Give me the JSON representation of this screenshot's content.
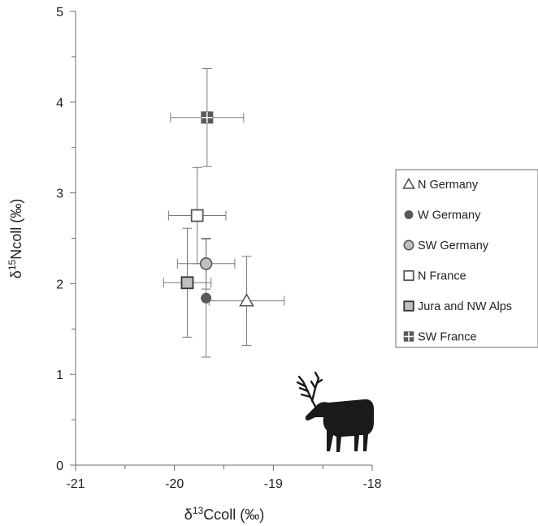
{
  "chart_data": {
    "type": "scatter",
    "title": "",
    "xlabel": {
      "prefix": "δ",
      "sup": "13",
      "suffix": "Ccoll (‰)"
    },
    "ylabel": {
      "prefix": "δ",
      "sup": "15",
      "suffix": "Ncoll (‰)"
    },
    "xlim": [
      -21,
      -18
    ],
    "ylim": [
      0,
      5
    ],
    "x_ticks": [
      -21,
      -20,
      -19,
      -18
    ],
    "x_tick_labels": [
      "-21",
      "-20",
      "-19",
      "-18"
    ],
    "y_ticks": [
      0,
      1,
      2,
      3,
      4,
      5
    ],
    "y_tick_labels": [
      "0",
      "1",
      "2",
      "3",
      "4",
      "5"
    ],
    "grid": false,
    "legend_position": "right",
    "series": [
      {
        "name": "N Germany",
        "marker": "triangle",
        "x": -19.27,
        "y": 1.81,
        "x_err": 0.38,
        "y_err": 0.49
      },
      {
        "name": "W Germany",
        "marker": "circle-small",
        "x": -19.68,
        "y": 1.84,
        "x_err": 0.0,
        "y_err": 0.65
      },
      {
        "name": "SW Germany",
        "marker": "circle",
        "x": -19.68,
        "y": 2.22,
        "x_err": 0.29,
        "y_err": 0.28
      },
      {
        "name": "N France",
        "marker": "square-open",
        "x": -19.77,
        "y": 2.75,
        "x_err": 0.29,
        "y_err": 0.53
      },
      {
        "name": "Jura and NW Alps",
        "marker": "square-filled",
        "x": -19.87,
        "y": 2.01,
        "x_err": 0.24,
        "y_err": 0.6
      },
      {
        "name": "SW France",
        "marker": "square-cross",
        "x": -19.67,
        "y": 3.83,
        "x_err": 0.37,
        "y_err": 0.54
      }
    ]
  },
  "colors": {
    "axis": "#6b6b6b",
    "errorbar": "#7a7a7a",
    "marker_stroke": "#555555",
    "filled_dark": "#5a5a5a",
    "filled_light": "#bfbfbf",
    "silhouette": "#1a1a1a"
  },
  "decoration": {
    "icon": "reindeer-silhouette-icon"
  }
}
